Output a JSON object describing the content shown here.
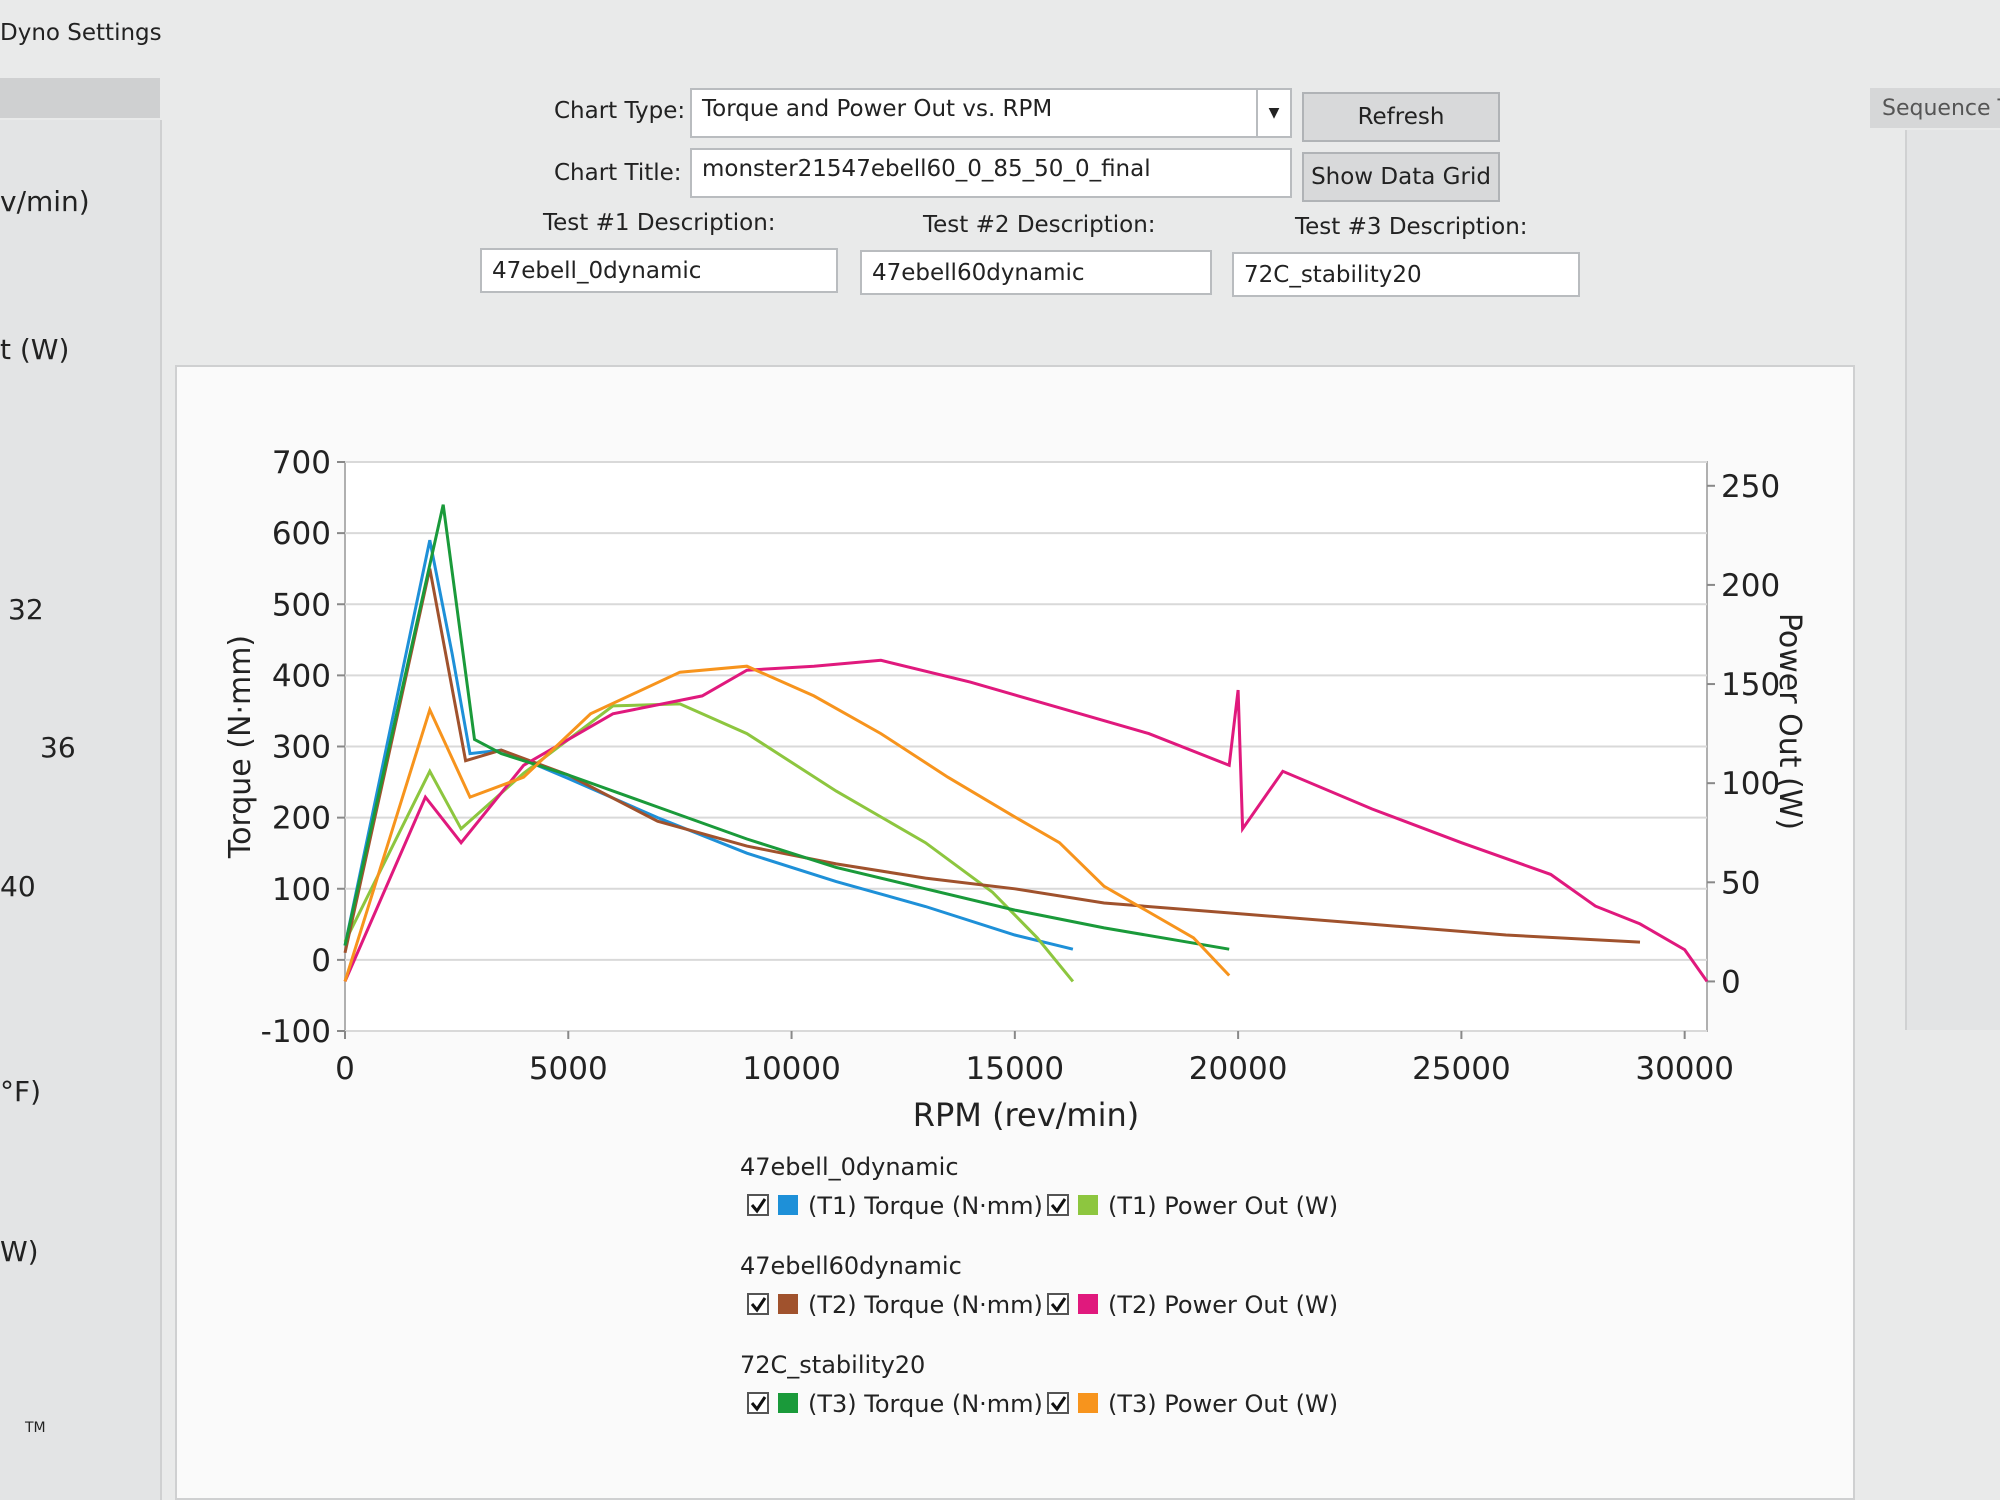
{
  "window_title": "Dyno Settings",
  "side_panel": {
    "labels": [
      "v/min)",
      "t  (W)",
      "32",
      "36",
      "40",
      "°F)",
      "W)",
      "TM"
    ]
  },
  "right_panel": {
    "tab": "Sequence T"
  },
  "form": {
    "chart_type_label": "Chart Type:",
    "chart_type": "Torque and Power Out vs. RPM",
    "refresh": "Refresh",
    "chart_title_label": "Chart Title:",
    "chart_title": "monster21547ebell60_0_85_50_0_final",
    "show_data_grid": "Show Data Grid",
    "tests": [
      {
        "label": "Test #1 Description:",
        "value": "47ebell_0dynamic"
      },
      {
        "label": "Test #2 Description:",
        "value": "47ebell60dynamic"
      },
      {
        "label": "Test #3 Description:",
        "value": "72C_stability20"
      }
    ]
  },
  "chart_data": {
    "type": "line",
    "xlabel": "RPM (rev/min)",
    "ylabel": "Torque (N·mm)",
    "y2label": "Power Out (W)",
    "xlim": [
      0,
      30500
    ],
    "xticks": [
      0,
      5000,
      10000,
      15000,
      20000,
      25000,
      30000
    ],
    "ylim": [
      -100,
      700
    ],
    "yticks": [
      -100,
      0,
      100,
      200,
      300,
      400,
      500,
      600,
      700
    ],
    "y2lim": [
      -25,
      262
    ],
    "y2ticks": [
      0,
      50,
      100,
      150,
      200,
      250
    ],
    "grid": true,
    "legend_groups": [
      {
        "title": "47ebell_0dynamic"
      },
      {
        "title": "47ebell60dynamic"
      },
      {
        "title": "72C_stability20"
      }
    ],
    "series": [
      {
        "name": "(T1) Torque (N·mm)",
        "color": "#1e90d8",
        "x": [
          0,
          1900,
          2400,
          2800,
          3500,
          5000,
          7000,
          9000,
          11000,
          13000,
          15000,
          16300
        ],
        "values": [
          20,
          590,
          430,
          290,
          295,
          255,
          200,
          150,
          110,
          75,
          35,
          15
        ]
      },
      {
        "name": "(T1) Power Out (W)",
        "color": "#8dc63f",
        "axis": "y2",
        "x": [
          0,
          1900,
          2600,
          4000,
          6000,
          7500,
          9000,
          11000,
          13000,
          14500,
          15500,
          16300
        ],
        "values": [
          20,
          106,
          77,
          105,
          139,
          140,
          125,
          96,
          70,
          45,
          22,
          0
        ]
      },
      {
        "name": "(T2) Torque (N·mm)",
        "color": "#a0522d",
        "x": [
          0,
          1900,
          2700,
          3500,
          5000,
          7000,
          9000,
          11000,
          13000,
          15000,
          17000,
          20000,
          23000,
          26000,
          29000
        ],
        "values": [
          10,
          550,
          280,
          295,
          260,
          195,
          160,
          135,
          115,
          100,
          80,
          65,
          50,
          35,
          25
        ]
      },
      {
        "name": "(T2) Power Out (W)",
        "color": "#e0197d",
        "axis": "y2",
        "x": [
          0,
          1800,
          2600,
          4000,
          6000,
          8000,
          9000,
          10500,
          12000,
          14000,
          16000,
          18000,
          19800,
          20000,
          20100,
          21000,
          23000,
          25000,
          27000,
          28000,
          29000,
          30000,
          30500
        ],
        "values": [
          0,
          93,
          70,
          109,
          135,
          144,
          157,
          159,
          162,
          151,
          138,
          125,
          109,
          147,
          77,
          106,
          87,
          70,
          54,
          38,
          29,
          16,
          0
        ]
      },
      {
        "name": "(T3) Torque (N·mm)",
        "color": "#1a9a3a",
        "x": [
          0,
          2200,
          2900,
          3500,
          5000,
          7000,
          9000,
          11000,
          13000,
          15000,
          17000,
          19800
        ],
        "values": [
          20,
          640,
          310,
          290,
          260,
          215,
          170,
          130,
          100,
          70,
          45,
          15
        ]
      },
      {
        "name": "(T3) Power Out (W)",
        "color": "#f7941d",
        "axis": "y2",
        "x": [
          0,
          1900,
          2800,
          4000,
          5500,
          7500,
          9000,
          10500,
          12000,
          13500,
          15000,
          16000,
          17000,
          18000,
          19000,
          19800
        ],
        "values": [
          0,
          137,
          93,
          103,
          135,
          156,
          159,
          144,
          125,
          103,
          83,
          70,
          48,
          35,
          22,
          3
        ]
      }
    ]
  }
}
